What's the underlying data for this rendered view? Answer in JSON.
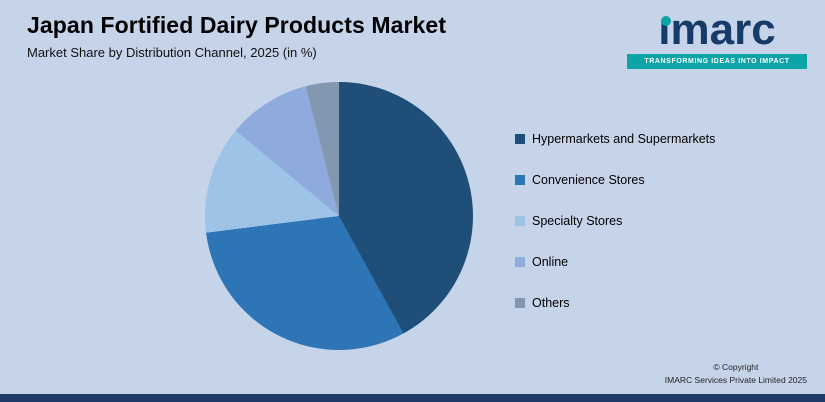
{
  "header": {
    "title": "Japan Fortified Dairy Products Market",
    "subtitle": "Market Share by Distribution Channel, 2025 (in %)"
  },
  "logo": {
    "brand": "imarc",
    "tagline": "TRANSFORMING IDEAS INTO IMPACT",
    "brand_color": "#173b69",
    "accent_color": "#0ca4a6"
  },
  "chart_data": {
    "type": "pie",
    "title": "Japan Fortified Dairy Products Market",
    "subtitle": "Market Share by Distribution Channel, 2025 (in %)",
    "labels": [
      "Hypermarkets and Supermarkets",
      "Convenience Stores",
      "Specialty Stores",
      "Online",
      "Others"
    ],
    "values": [
      42,
      31,
      13,
      10,
      4
    ],
    "colors": [
      "#1f4e79",
      "#2e75b6",
      "#9dc3e6",
      "#8faadc",
      "#8497b0"
    ],
    "legend_position": "right",
    "start_angle_deg": 0,
    "background_color": "#c6d4ea"
  },
  "footer": {
    "copyright_line1": "© Copyright",
    "copyright_line2": "IMARC Services Private Limited 2025"
  }
}
